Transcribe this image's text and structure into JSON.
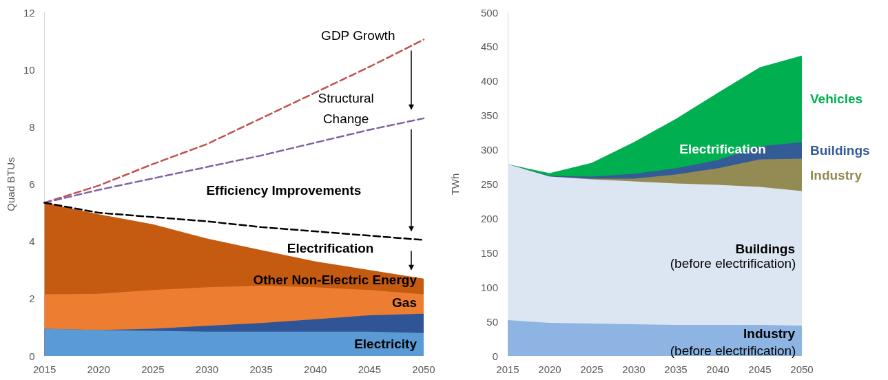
{
  "chart_data": [
    {
      "type": "area",
      "ylabel": "Quad BTUs",
      "x": [
        2015,
        2020,
        2025,
        2030,
        2035,
        2040,
        2045,
        2050
      ],
      "xlim": [
        2015,
        2050
      ],
      "xticks": [
        2015,
        2020,
        2025,
        2030,
        2035,
        2040,
        2045,
        2050
      ],
      "ylim": [
        0,
        12
      ],
      "yticks": [
        0,
        2,
        4,
        6,
        8,
        10,
        12
      ],
      "stacked": true,
      "grid": false,
      "legend": false,
      "marker": "none",
      "line_style": "dashed",
      "series": [
        {
          "name": "Electricity",
          "color": "#5b9bd5",
          "values": [
            0.95,
            0.9,
            0.88,
            0.85,
            0.85,
            0.85,
            0.85,
            0.8
          ]
        },
        {
          "color": "#2f5597",
          "values": [
            0,
            0,
            0.07,
            0.2,
            0.3,
            0.43,
            0.57,
            0.67
          ]
        },
        {
          "name": "Gas",
          "color": "#ed7d31",
          "values": [
            1.2,
            1.27,
            1.35,
            1.35,
            1.3,
            1.12,
            0.88,
            0.68
          ]
        },
        {
          "name": "Other Non-Electric Energy",
          "color": "#c55a11",
          "values": [
            3.2,
            2.78,
            2.3,
            1.7,
            1.25,
            0.9,
            0.7,
            0.55
          ]
        },
        {
          "type": "line",
          "color": "#c0504d",
          "values": [
            5.35,
            5.95,
            6.7,
            7.4,
            8.3,
            9.2,
            10.1,
            11.05
          ]
        },
        {
          "type": "line",
          "color": "#8064a2",
          "values": [
            5.35,
            5.8,
            6.2,
            6.6,
            7.0,
            7.45,
            7.9,
            8.3
          ]
        },
        {
          "type": "line",
          "color": "#000000",
          "values": [
            5.35,
            5.0,
            4.85,
            4.7,
            4.5,
            4.35,
            4.2,
            4.05
          ]
        }
      ],
      "annotations": [
        "GDP Growth",
        "Structural\nChange",
        "Efficiency Improvements",
        "Electrification"
      ]
    },
    {
      "type": "area",
      "ylabel": "TWh",
      "x": [
        2015,
        2020,
        2025,
        2030,
        2035,
        2040,
        2045,
        2050
      ],
      "xlim": [
        2015,
        2050
      ],
      "xticks": [
        2015,
        2020,
        2025,
        2030,
        2035,
        2040,
        2045,
        2050
      ],
      "ylim": [
        0,
        500
      ],
      "yticks": [
        0,
        50,
        100,
        150,
        200,
        250,
        300,
        350,
        400,
        450,
        500
      ],
      "stacked": true,
      "grid": false,
      "legend": false,
      "series": [
        {
          "name": "Industry",
          "color": "#8eb4e3",
          "values": [
            52,
            48,
            47,
            46,
            45,
            45,
            45,
            44
          ]
        },
        {
          "name": "Buildings",
          "color": "#dce6f2",
          "values": [
            227,
            213,
            210,
            208,
            206,
            204,
            201,
            196
          ]
        },
        {
          "name": "Industry",
          "color": "#948a54",
          "values": [
            0,
            0,
            1,
            4,
            13,
            24,
            40,
            47
          ]
        },
        {
          "name": "Buildings",
          "color": "#335b96",
          "values": [
            0,
            1,
            3,
            7,
            9,
            12,
            19,
            24
          ]
        },
        {
          "name": "Vehicles",
          "color": "#00b050",
          "values": [
            0,
            4,
            20,
            46,
            72,
            98,
            115,
            126
          ]
        }
      ],
      "annotations": [
        "Electrification",
        "(before electrification)",
        "(before electrification)"
      ]
    }
  ]
}
